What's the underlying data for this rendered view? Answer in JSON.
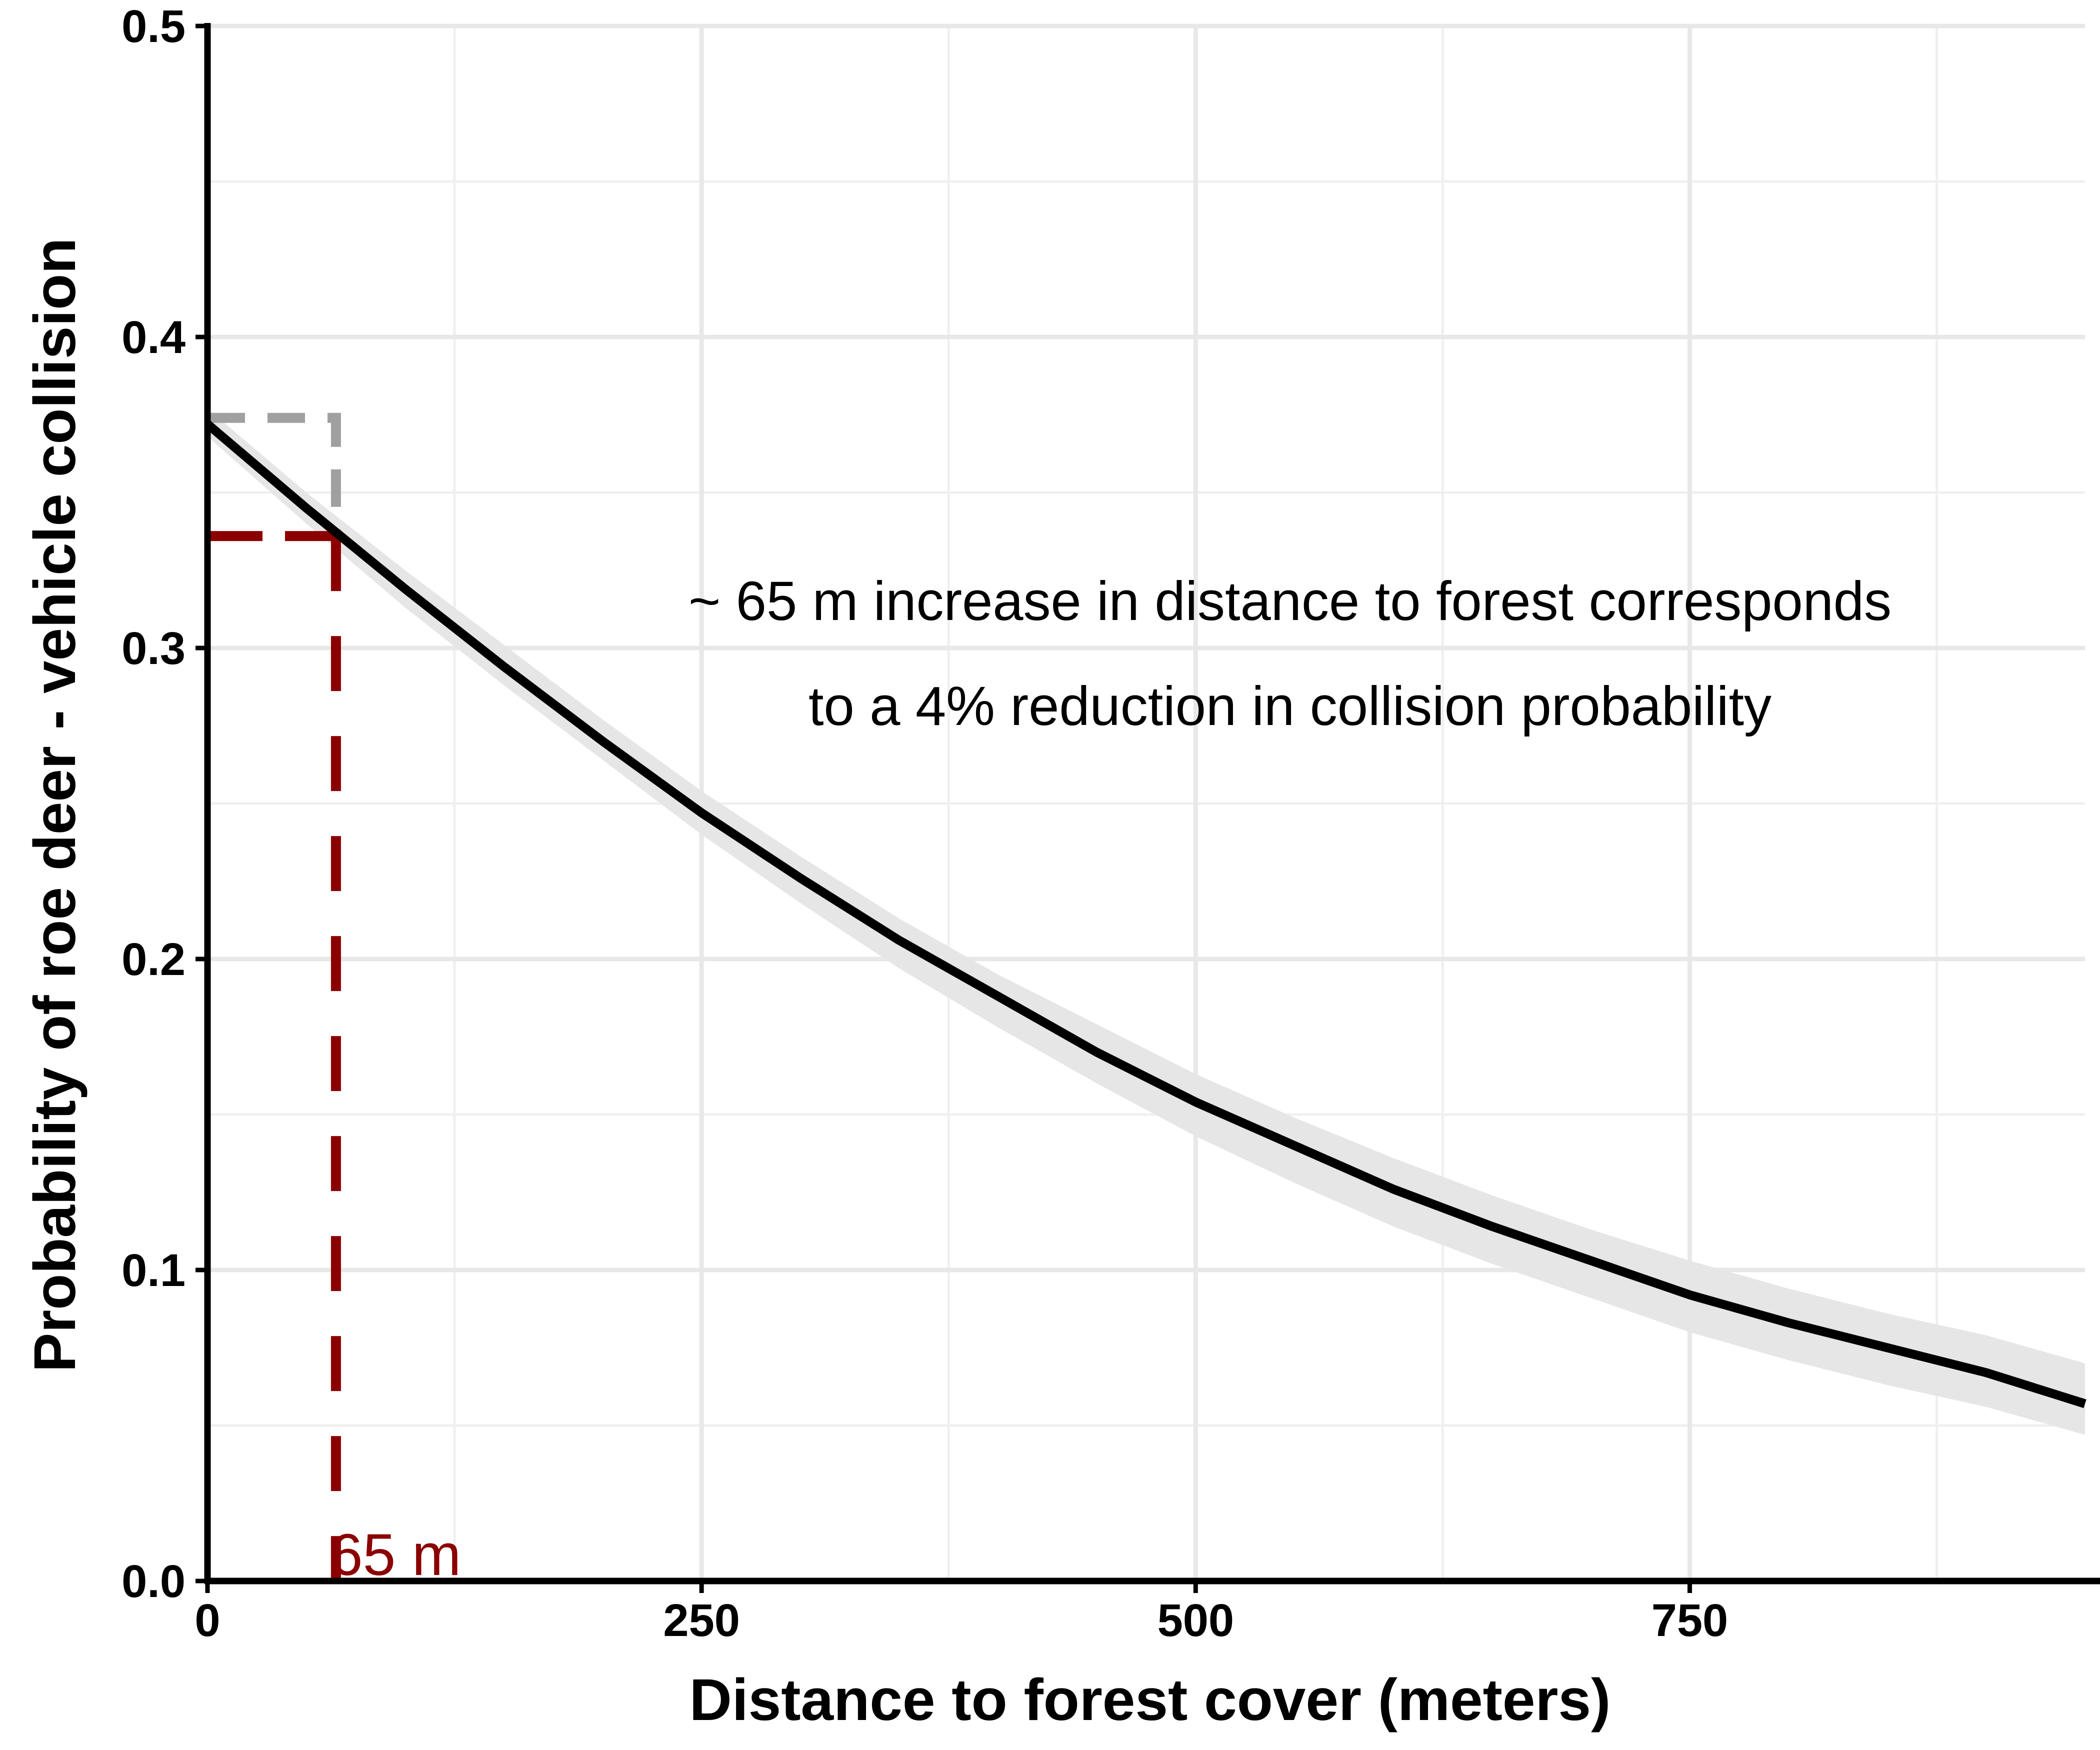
{
  "chart_data": {
    "type": "line",
    "xlabel": "Distance to forest cover (meters)",
    "ylabel": "Probability of  roe deer - vehicle collision",
    "xlim": [
      0,
      950
    ],
    "ylim": [
      0,
      0.5
    ],
    "x_ticks": [
      0,
      250,
      500,
      750
    ],
    "x_tick_labels": [
      "0",
      "250",
      "500",
      "750"
    ],
    "y_ticks": [
      0.0,
      0.1,
      0.2,
      0.3,
      0.4,
      0.5
    ],
    "y_tick_labels": [
      "0.0",
      "0.1",
      "0.2",
      "0.3",
      "0.4",
      "0.5"
    ],
    "grid": true,
    "x": [
      0,
      50,
      100,
      150,
      200,
      250,
      300,
      350,
      400,
      450,
      500,
      550,
      600,
      650,
      700,
      750,
      800,
      850,
      900,
      950
    ],
    "series": [
      {
        "values": [
          0.372,
          0.345,
          0.319,
          0.294,
          0.27,
          0.247,
          0.226,
          0.206,
          0.188,
          0.17,
          0.154,
          0.14,
          0.126,
          0.114,
          0.103,
          0.092,
          0.083,
          0.075,
          0.067,
          0.057
        ],
        "ci_lower": [
          0.368,
          0.34,
          0.313,
          0.288,
          0.264,
          0.24,
          0.218,
          0.197,
          0.178,
          0.16,
          0.143,
          0.128,
          0.114,
          0.102,
          0.091,
          0.08,
          0.071,
          0.063,
          0.056,
          0.047
        ],
        "ci_upper": [
          0.377,
          0.35,
          0.325,
          0.301,
          0.277,
          0.254,
          0.233,
          0.213,
          0.195,
          0.179,
          0.163,
          0.149,
          0.136,
          0.124,
          0.113,
          0.103,
          0.094,
          0.086,
          0.079,
          0.07
        ],
        "color": "#000000",
        "ci_color": "#e6e6e6"
      }
    ],
    "reference_lines": [
      {
        "kind": "grey-bracket",
        "x0": 0,
        "x1": 65,
        "y": 0.374,
        "y_end": 0.337,
        "color": "#a0a0a0"
      },
      {
        "kind": "red-guide",
        "x": 65,
        "y": 0.336,
        "color": "#8b0000"
      }
    ],
    "annotations": {
      "line1": "~ 65 m increase in distance to forest corresponds",
      "line2": "to a 4% reduction in collision probability",
      "marker_label": "65 m",
      "marker_color": "#8b0000"
    }
  }
}
